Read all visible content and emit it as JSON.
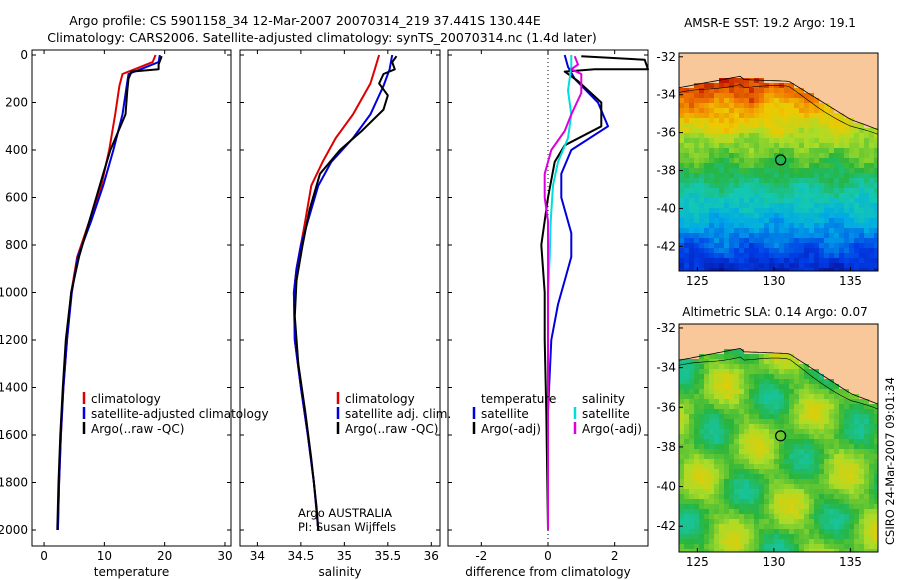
{
  "title": {
    "line1": "Argo profile: CS 5901158_34 12-Mar-2007 20070314_219 37.441S 130.44E",
    "line2": "Climatology: CARS2006. Satellite-adjusted climatology: synTS_20070314.nc (1.4d later)"
  },
  "colors": {
    "red": "#dd0000",
    "blue": "#0000dd",
    "black": "#000000",
    "cyan": "#00dddd",
    "magenta": "#dd00dd",
    "land": "#f8c79a"
  },
  "chart_data": [
    {
      "type": "line",
      "name": "temperature-profile",
      "xlabel": "temperature",
      "ylabel": "",
      "xlim": [
        -2,
        31
      ],
      "ylim": [
        0,
        2050
      ],
      "xticks": [
        0,
        10,
        20,
        30
      ],
      "yticks": [
        0,
        200,
        400,
        600,
        800,
        1000,
        1200,
        1400,
        1600,
        1800,
        2000
      ],
      "legend": {
        "placement": "lower-right",
        "labels": [
          "climatology",
          "satellite-adjusted climatology",
          "Argo(..raw -QC)"
        ]
      },
      "series": [
        {
          "name": "climatology",
          "color": "red",
          "points": [
            [
              18.5,
              0
            ],
            [
              18,
              30
            ],
            [
              15,
              60
            ],
            [
              13,
              80
            ],
            [
              12.5,
              130
            ],
            [
              11.8,
              250
            ],
            [
              10.8,
              400
            ],
            [
              9.5,
              550
            ],
            [
              7.5,
              700
            ],
            [
              5.5,
              850
            ],
            [
              4.5,
              1000
            ],
            [
              3.8,
              1200
            ],
            [
              3.2,
              1400
            ],
            [
              2.8,
              1600
            ],
            [
              2.5,
              1800
            ],
            [
              2.3,
              2000
            ]
          ]
        },
        {
          "name": "satellite-adjusted climatology",
          "color": "blue",
          "points": [
            [
              19.2,
              0
            ],
            [
              19,
              30
            ],
            [
              16,
              60
            ],
            [
              14,
              80
            ],
            [
              13.7,
              130
            ],
            [
              13,
              250
            ],
            [
              11.5,
              400
            ],
            [
              9.8,
              550
            ],
            [
              7.8,
              700
            ],
            [
              5.6,
              850
            ],
            [
              4.6,
              1000
            ],
            [
              3.8,
              1200
            ],
            [
              3.2,
              1400
            ],
            [
              2.8,
              1600
            ],
            [
              2.5,
              1800
            ],
            [
              2.3,
              2000
            ]
          ]
        },
        {
          "name": "Argo(..raw -QC)",
          "color": "black",
          "points": [
            [
              19.5,
              5
            ],
            [
              19,
              40
            ],
            [
              19,
              60
            ],
            [
              14.5,
              70
            ],
            [
              14,
              100
            ],
            [
              13.8,
              150
            ],
            [
              13.5,
              250
            ],
            [
              11,
              400
            ],
            [
              9.8,
              500
            ],
            [
              7.5,
              700
            ],
            [
              5.8,
              850
            ],
            [
              4.5,
              1000
            ],
            [
              3.6,
              1200
            ],
            [
              3.1,
              1400
            ],
            [
              2.7,
              1600
            ],
            [
              2.4,
              1800
            ],
            [
              2.2,
              2000
            ]
          ]
        }
      ]
    },
    {
      "type": "line",
      "name": "salinity-profile",
      "xlabel": "salinity",
      "ylabel": "",
      "xlim": [
        33.8,
        36.1
      ],
      "ylim": [
        0,
        2050
      ],
      "xticks": [
        34,
        34.5,
        35,
        35.5,
        36
      ],
      "yticks": [],
      "legend": {
        "placement": "lower-right",
        "labels": [
          "climatology",
          "satellite adj. clim.",
          "Argo(..raw -QC)"
        ]
      },
      "annotation": [
        "Argo AUSTRALIA",
        "PI: Susan Wijffels"
      ],
      "series": [
        {
          "name": "climatology",
          "color": "red",
          "points": [
            [
              35.4,
              0
            ],
            [
              35.35,
              60
            ],
            [
              35.3,
              120
            ],
            [
              35.1,
              250
            ],
            [
              34.9,
              350
            ],
            [
              34.75,
              450
            ],
            [
              34.62,
              550
            ],
            [
              34.55,
              700
            ],
            [
              34.5,
              800
            ],
            [
              34.45,
              900
            ],
            [
              34.42,
              1000
            ],
            [
              34.43,
              1200
            ],
            [
              34.5,
              1400
            ],
            [
              34.58,
              1600
            ],
            [
              34.65,
              1800
            ],
            [
              34.7,
              2000
            ]
          ]
        },
        {
          "name": "satellite adj. clim.",
          "color": "blue",
          "points": [
            [
              35.55,
              0
            ],
            [
              35.52,
              60
            ],
            [
              35.45,
              130
            ],
            [
              35.3,
              250
            ],
            [
              35.1,
              350
            ],
            [
              34.85,
              450
            ],
            [
              34.7,
              550
            ],
            [
              34.58,
              700
            ],
            [
              34.5,
              800
            ],
            [
              34.45,
              900
            ],
            [
              34.42,
              1000
            ],
            [
              34.43,
              1200
            ],
            [
              34.5,
              1400
            ],
            [
              34.58,
              1600
            ],
            [
              34.65,
              1800
            ],
            [
              34.7,
              2000
            ]
          ]
        },
        {
          "name": "Argo(..raw -QC)",
          "color": "black",
          "points": [
            [
              35.6,
              5
            ],
            [
              35.55,
              30
            ],
            [
              35.58,
              60
            ],
            [
              35.45,
              80
            ],
            [
              35.4,
              120
            ],
            [
              35.5,
              170
            ],
            [
              35.45,
              230
            ],
            [
              35.2,
              320
            ],
            [
              34.95,
              400
            ],
            [
              34.72,
              500
            ],
            [
              34.6,
              650
            ],
            [
              34.52,
              800
            ],
            [
              34.45,
              950
            ],
            [
              34.43,
              1100
            ],
            [
              34.47,
              1300
            ],
            [
              34.55,
              1500
            ],
            [
              34.62,
              1700
            ],
            [
              34.68,
              1900
            ],
            [
              34.7,
              2000
            ]
          ]
        }
      ]
    },
    {
      "type": "line",
      "name": "difference-profile",
      "xlabel": "difference from climatology",
      "ylabel": "",
      "xlim": [
        -3,
        3
      ],
      "ylim": [
        0,
        2050
      ],
      "xticks": [
        -2,
        0,
        2
      ],
      "yticks": [],
      "legend": {
        "placement": "lower-center",
        "groups": [
          {
            "heading": "temperature",
            "labels": [
              "satellite",
              "Argo(-adj)"
            ]
          },
          {
            "heading": "salinity",
            "labels": [
              "satellite",
              "Argo(-adj)"
            ]
          }
        ]
      },
      "series": [
        {
          "name": "temperature satellite",
          "color": "blue",
          "points": [
            [
              0.5,
              0
            ],
            [
              0.6,
              50
            ],
            [
              0.8,
              100
            ],
            [
              1.5,
              200
            ],
            [
              1.8,
              300
            ],
            [
              0.7,
              400
            ],
            [
              0.4,
              500
            ],
            [
              0.4,
              600
            ],
            [
              0.7,
              750
            ],
            [
              0.7,
              850
            ],
            [
              0.5,
              950
            ],
            [
              0.3,
              1050
            ],
            [
              0.1,
              1200
            ],
            [
              0,
              1500
            ],
            [
              0,
              2000
            ]
          ]
        },
        {
          "name": "temperature Argo(-adj)",
          "color": "black",
          "points": [
            [
              1.0,
              5
            ],
            [
              2.9,
              20
            ],
            [
              3.0,
              60
            ],
            [
              1.4,
              60
            ],
            [
              0.5,
              70
            ],
            [
              0.9,
              110
            ],
            [
              1.6,
              200
            ],
            [
              1.6,
              300
            ],
            [
              0.5,
              380
            ],
            [
              0.2,
              450
            ],
            [
              0,
              600
            ],
            [
              -0.2,
              800
            ],
            [
              -0.1,
              1000
            ],
            [
              -0.1,
              1200
            ],
            [
              -0.05,
              1500
            ],
            [
              0,
              2000
            ]
          ]
        },
        {
          "name": "salinity satellite",
          "color": "cyan",
          "points": [
            [
              0.7,
              0
            ],
            [
              0.7,
              50
            ],
            [
              0.6,
              150
            ],
            [
              0.7,
              250
            ],
            [
              0.6,
              350
            ],
            [
              0.3,
              450
            ],
            [
              0.15,
              550
            ],
            [
              0.08,
              700
            ],
            [
              0.05,
              850
            ],
            [
              0,
              1000
            ],
            [
              0,
              2000
            ]
          ]
        },
        {
          "name": "salinity Argo(-adj)",
          "color": "magenta",
          "points": [
            [
              0.8,
              5
            ],
            [
              0.9,
              40
            ],
            [
              0.7,
              60
            ],
            [
              1.0,
              80
            ],
            [
              1.0,
              160
            ],
            [
              0.7,
              250
            ],
            [
              0.5,
              320
            ],
            [
              0.1,
              400
            ],
            [
              -0.1,
              500
            ],
            [
              -0.1,
              600
            ],
            [
              0,
              700
            ],
            [
              0,
              1000
            ],
            [
              0,
              2000
            ]
          ]
        }
      ]
    },
    {
      "type": "heatmap",
      "name": "amsr-e-sst-map",
      "title": "AMSR-E SST: 19.2 Argo: 19.1",
      "xlim": [
        123.8,
        136.8
      ],
      "ylim": [
        -43.3,
        -31.8
      ],
      "xticks": [
        125,
        130,
        135
      ],
      "yticks": [
        -32,
        -34,
        -36,
        -38,
        -40,
        -42
      ],
      "marker": {
        "lon": 130.44,
        "lat": -37.441
      }
    },
    {
      "type": "heatmap",
      "name": "altimetric-sla-map",
      "title": "Altimetric SLA: 0.14 Argo: 0.07",
      "xlim": [
        123.8,
        136.8
      ],
      "ylim": [
        -43.3,
        -31.8
      ],
      "xticks": [
        125,
        130,
        135
      ],
      "yticks": [
        -32,
        -34,
        -36,
        -38,
        -40,
        -42
      ],
      "marker": {
        "lon": 130.44,
        "lat": -37.441
      }
    }
  ],
  "side_note": "CSIRO 24-Mar-2007 09:01:34"
}
